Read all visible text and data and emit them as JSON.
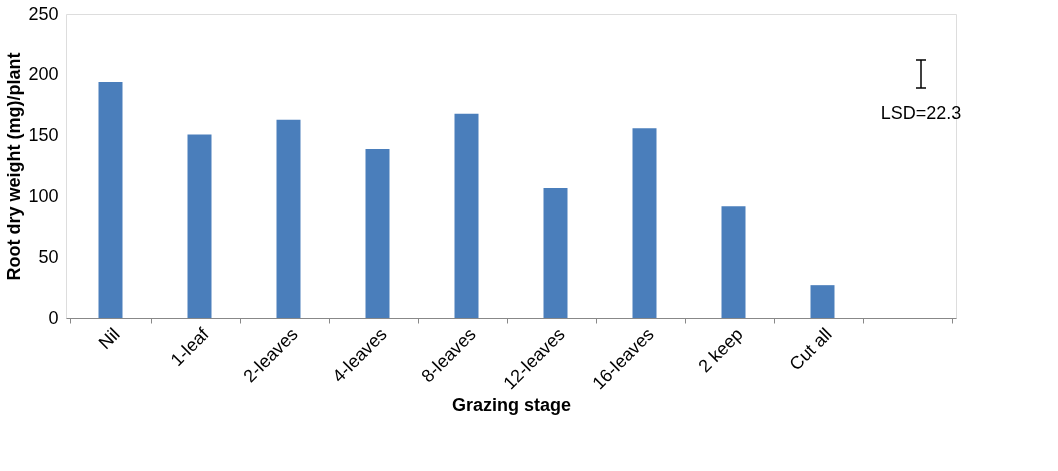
{
  "chart_data": {
    "type": "bar",
    "xlabel": "Grazing stage",
    "ylabel": "Root dry weight (mg)/plant",
    "categories": [
      "Nil",
      "1-leaf",
      "2-leaves",
      "4-leaves",
      "8-leaves",
      "12-leaves",
      "16-leaves",
      "2 keep",
      "Cut all",
      null
    ],
    "values": [
      194,
      151,
      163,
      139,
      168,
      107,
      156,
      92,
      27,
      null
    ],
    "color": "#4a7ebb",
    "ylim": [
      0,
      250
    ],
    "yticks": [
      0,
      50,
      100,
      150,
      200,
      250
    ],
    "grid": false,
    "annotations": [
      "LSD=22.3"
    ]
  }
}
